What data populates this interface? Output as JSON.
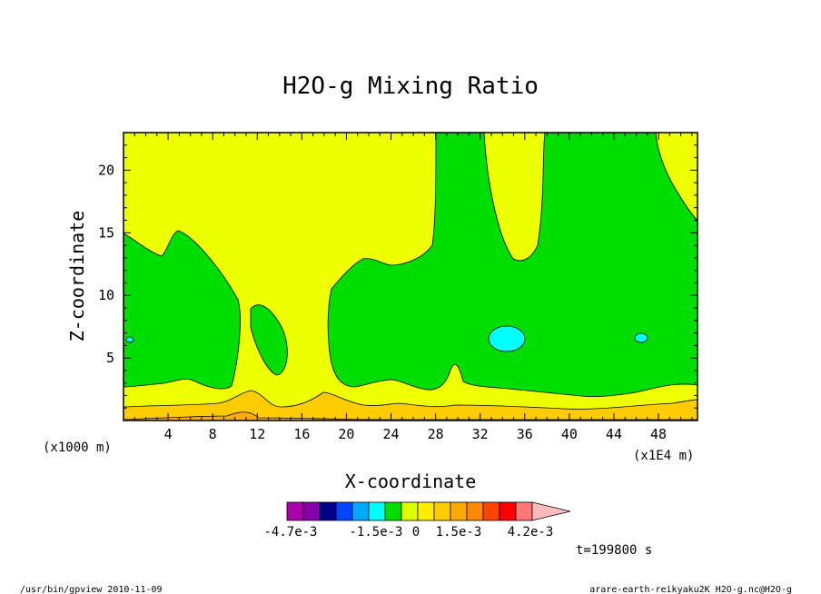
{
  "chart_data": {
    "type": "heatmap",
    "title": "H2O-g Mixing Ratio",
    "xlabel": "X-coordinate",
    "ylabel": "Z-coordinate",
    "x_unit_label": "(x1000 m)",
    "x_scale_label": "(x1E4 m)",
    "xlim": [
      0,
      51.5
    ],
    "ylim": [
      0,
      23
    ],
    "x_ticks": [
      4,
      8,
      12,
      16,
      20,
      24,
      28,
      32,
      36,
      40,
      44,
      48
    ],
    "y_ticks": [
      5,
      10,
      15,
      20
    ],
    "time_label": "t=199800 s",
    "colorbar": {
      "levels": [
        -0.0047,
        -0.0041,
        -0.0035,
        -0.0029,
        -0.0023,
        -0.0017,
        -0.0011,
        -0.0005,
        0.0001,
        0.0007,
        0.0013,
        0.0019,
        0.0025,
        0.0031,
        0.0037,
        0.0043
      ],
      "colors": [
        "#aa00aa",
        "#8800aa",
        "#000088",
        "#0044ff",
        "#00aaff",
        "#00ffff",
        "#00dd00",
        "#ddff00",
        "#ffee00",
        "#ffcc00",
        "#ffaa00",
        "#ff8800",
        "#ff4400",
        "#ff0000",
        "#ff7777",
        "#ffbbbb"
      ],
      "tick_labels": [
        "-4.7e-3",
        "-1.5e-3",
        "0",
        "1.5e-3",
        "4.2e-3"
      ]
    },
    "fields": {
      "background": "#eeff00",
      "green": "#00dd00",
      "cyan": "#00ffff",
      "orange": "#ffcc00",
      "dark_orange": "#ffaa00"
    }
  },
  "footer": {
    "left": "/usr/bin/gpview  2010-11-09",
    "right": "arare-earth-reikyaku2K_H2O-g.nc@H2O-g"
  }
}
